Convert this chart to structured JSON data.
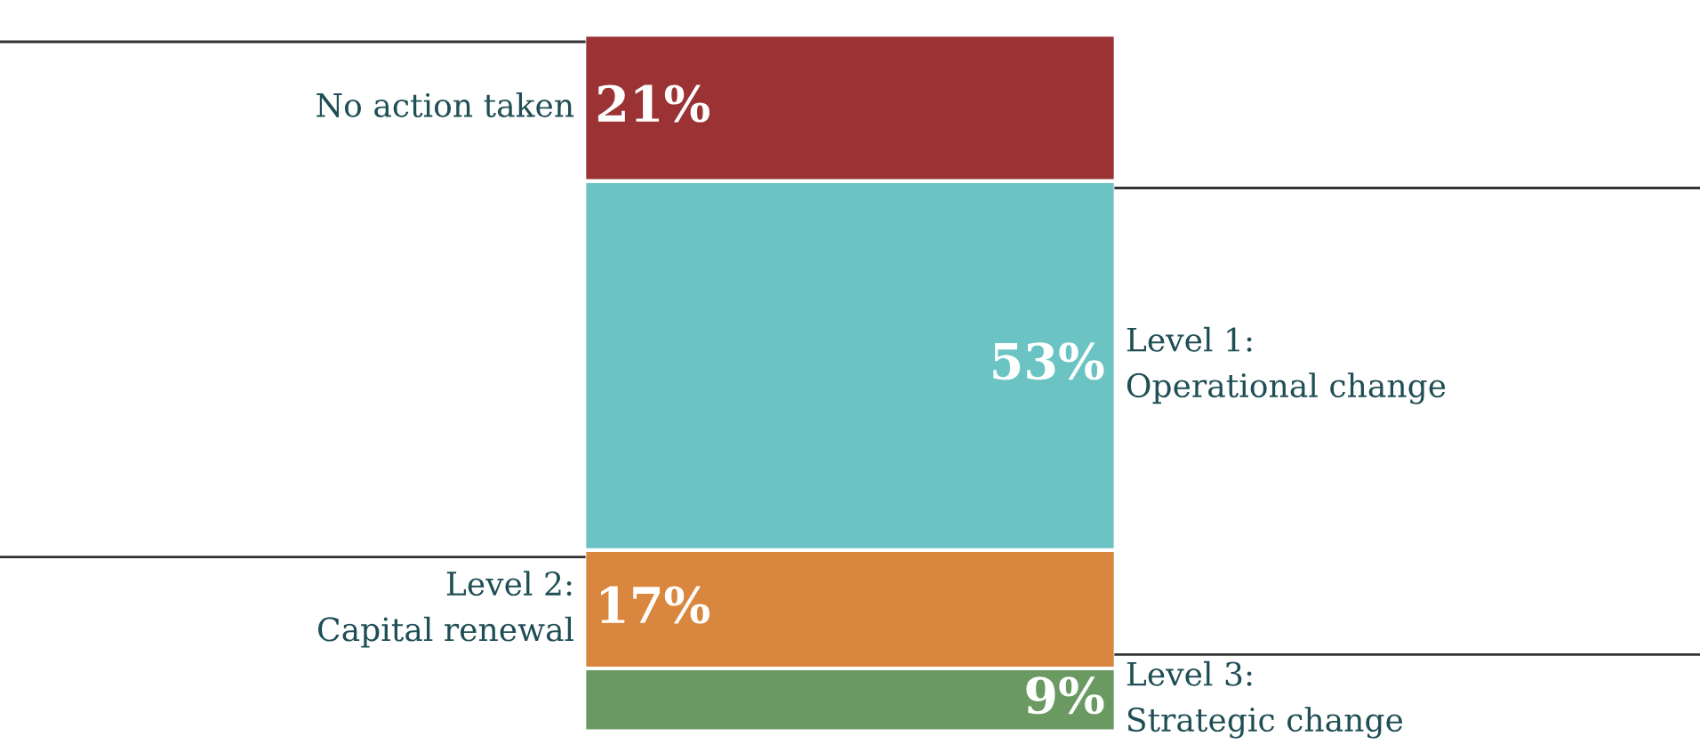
{
  "chart_data": {
    "type": "bar",
    "stacked": true,
    "categories": [
      null
    ],
    "legend": false,
    "series": [
      {
        "name": "Level 3:\nStrategic change",
        "color": "#6a9a62",
        "values": [
          9
        ],
        "value_labels": [
          "9%"
        ]
      },
      {
        "name": "Level 2:\nCapital renewal",
        "color": "#d9873e",
        "values": [
          17
        ],
        "value_labels": [
          "17%"
        ]
      },
      {
        "name": "Level 1:\nOperational change",
        "color": "#6cc3c4",
        "values": [
          53
        ],
        "value_labels": [
          "53%"
        ]
      },
      {
        "name": "No action taken",
        "color": "#9b3234",
        "values": [
          21
        ],
        "value_labels": [
          "21%"
        ]
      }
    ]
  }
}
